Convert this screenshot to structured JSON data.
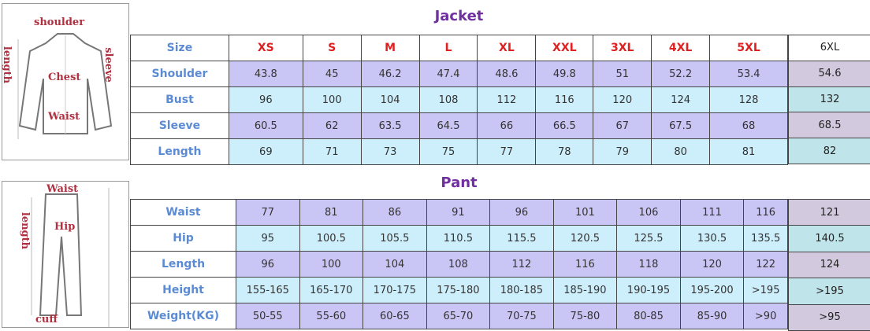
{
  "jacket": {
    "title": "Jacket",
    "sketch_labels": {
      "shoulder": "shoulder",
      "length": "length",
      "sleeve": "sleeve",
      "chest": "Chest",
      "waist": "Waist"
    },
    "header": {
      "label": "Size",
      "sizes": [
        "XS",
        "S",
        "M",
        "L",
        "XL",
        "XXL",
        "3XL",
        "4XL",
        "5XL"
      ]
    },
    "rows": [
      {
        "label": "Shoulder",
        "values": [
          "43.8",
          "45",
          "46.2",
          "47.4",
          "48.6",
          "49.8",
          "51",
          "52.2",
          "53.4"
        ]
      },
      {
        "label": "Bust",
        "values": [
          "96",
          "100",
          "104",
          "108",
          "112",
          "116",
          "120",
          "124",
          "128"
        ]
      },
      {
        "label": "Sleeve",
        "values": [
          "60.5",
          "62",
          "63.5",
          "64.5",
          "66",
          "66.5",
          "67",
          "67.5",
          "68"
        ]
      },
      {
        "label": "Length",
        "values": [
          "69",
          "71",
          "73",
          "75",
          "77",
          "78",
          "79",
          "80",
          "81"
        ]
      }
    ],
    "extra": {
      "size": "6XL",
      "values": [
        "54.6",
        "132",
        "68.5",
        "82"
      ]
    }
  },
  "pant": {
    "title": "Pant",
    "sketch_labels": {
      "waist": "Waist",
      "length": "length",
      "hip": "Hip",
      "cuff": "cuff"
    },
    "rows": [
      {
        "label": "Waist",
        "values": [
          "77",
          "81",
          "86",
          "91",
          "96",
          "101",
          "106",
          "111",
          "116"
        ]
      },
      {
        "label": "Hip",
        "values": [
          "95",
          "100.5",
          "105.5",
          "110.5",
          "115.5",
          "120.5",
          "125.5",
          "130.5",
          "135.5"
        ]
      },
      {
        "label": "Length",
        "values": [
          "96",
          "100",
          "104",
          "108",
          "112",
          "116",
          "118",
          "120",
          "122"
        ]
      },
      {
        "label": "Height",
        "values": [
          "155-165",
          "165-170",
          "170-175",
          "175-180",
          "180-185",
          "185-190",
          "190-195",
          "195-200",
          ">195"
        ]
      },
      {
        "label": "Weight(KG)",
        "values": [
          "50-55",
          "55-60",
          "60-65",
          "65-70",
          "70-75",
          "75-80",
          "80-85",
          "85-90",
          ">90"
        ]
      }
    ],
    "extra": {
      "values": [
        "121",
        "140.5",
        "124",
        ">195",
        ">95"
      ]
    }
  },
  "colors": {
    "title": "#7030a0",
    "label": "#5b8bd4",
    "size": "#e02020",
    "purple": "#c9c6f5",
    "blue": "#cdeefb"
  }
}
